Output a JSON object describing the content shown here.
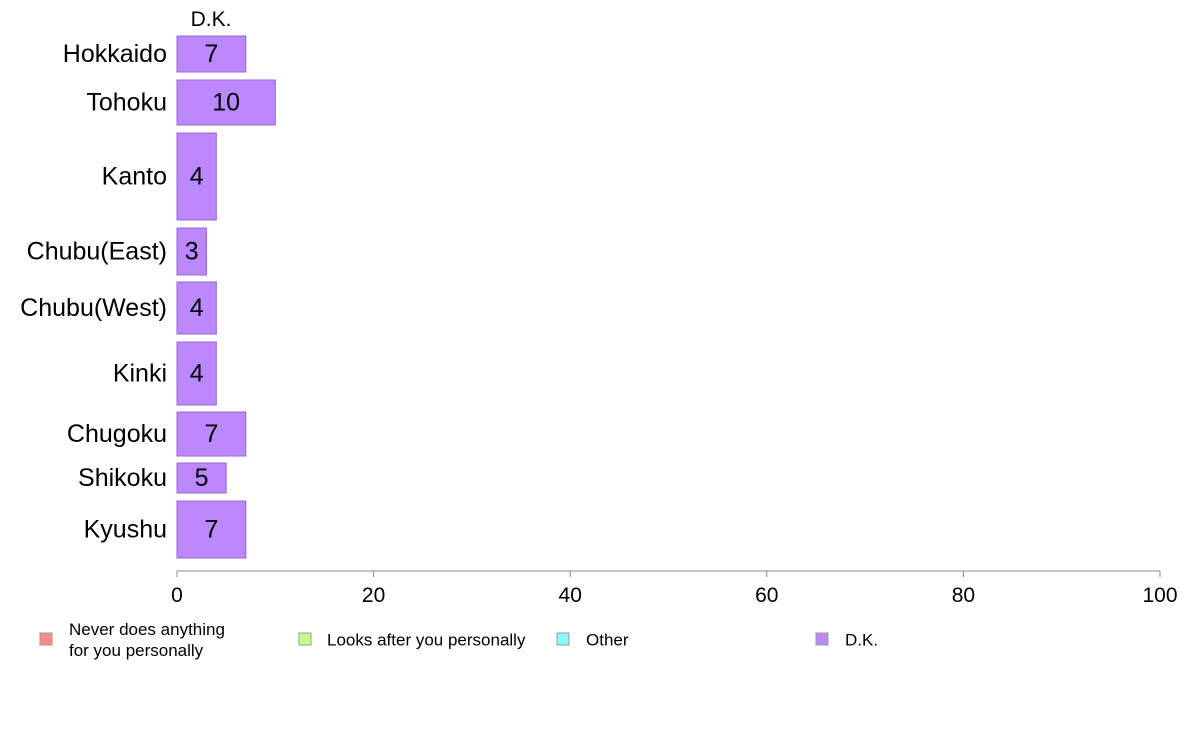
{
  "chart_data": {
    "type": "bar",
    "orientation": "horizontal",
    "column_header": "D.K.",
    "categories": [
      "Hokkaido",
      "Tohoku",
      "Kanto",
      "Chubu(East)",
      "Chubu(West)",
      "Kinki",
      "Chugoku",
      "Shikoku",
      "Kyushu"
    ],
    "series": [
      {
        "name": "D.K.",
        "values": [
          7,
          10,
          4,
          3,
          4,
          4,
          7,
          5,
          7
        ],
        "color": "#bb88ff"
      }
    ],
    "xlim": [
      0,
      100
    ],
    "xticks": [
      "0",
      "20",
      "40",
      "60",
      "80",
      "100"
    ],
    "grid": false,
    "legend": {
      "position": "bottom",
      "items": [
        {
          "label": "Never does anything for you personally",
          "lines": [
            "Never does anything",
            "for you personally"
          ],
          "color": "#ff8888"
        },
        {
          "label": "Looks after you personally",
          "lines": [
            "Looks after you personally"
          ],
          "color": "#c3ff88"
        },
        {
          "label": "Other",
          "lines": [
            "Other"
          ],
          "color": "#88ffff"
        },
        {
          "label": "D.K.",
          "lines": [
            "D.K."
          ],
          "color": "#bb88ff"
        }
      ]
    }
  }
}
